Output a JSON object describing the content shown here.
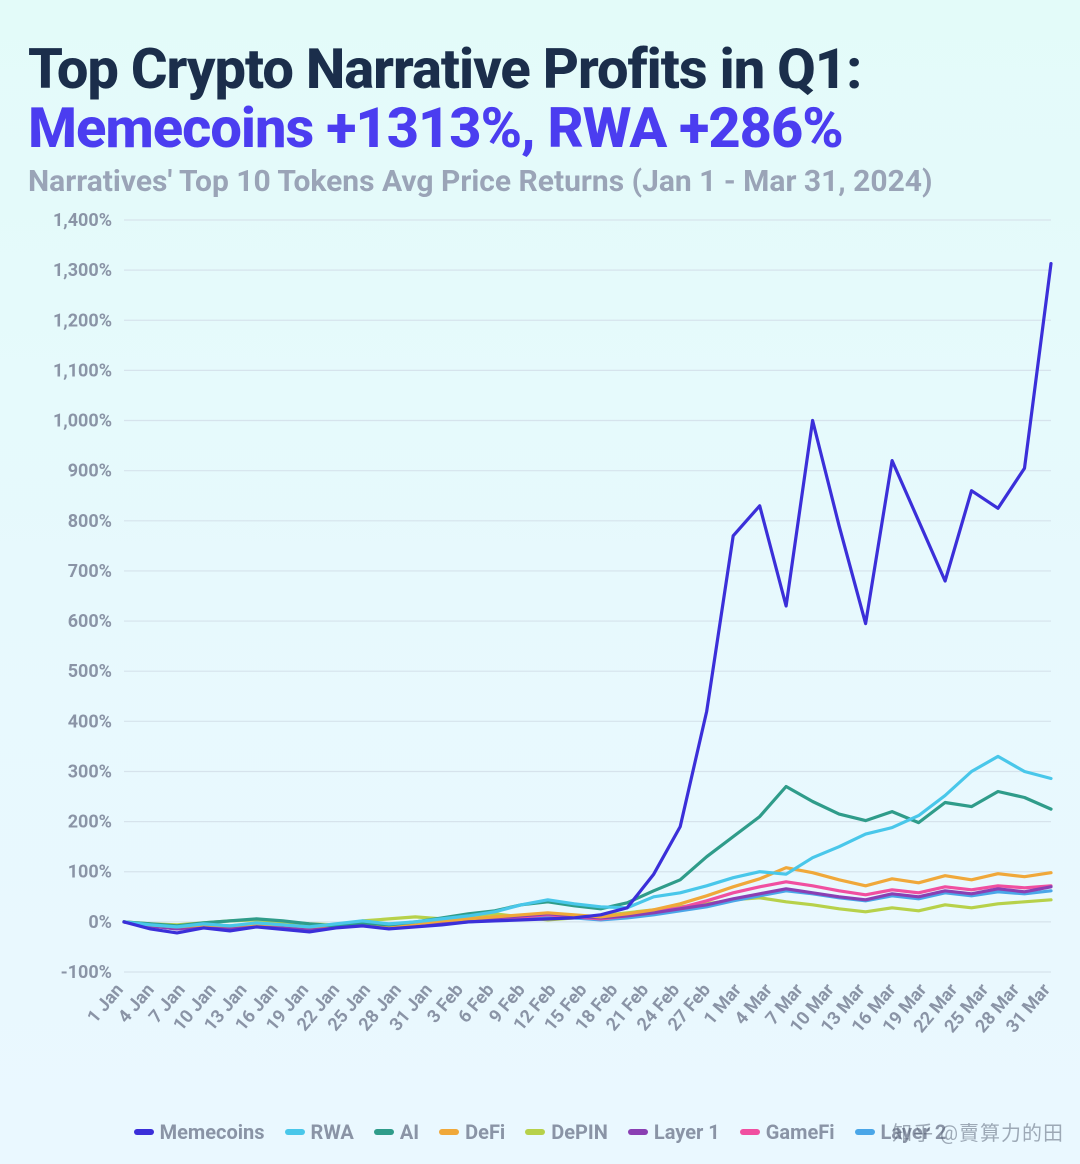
{
  "title": {
    "line1": "Top Crypto Narrative Profits in Q1:",
    "line2": "Memecoins +1313%, RWA +286%",
    "subtitle": "Narratives' Top 10 Tokens Avg Price Returns (Jan 1 - Mar 31, 2024)",
    "line1_color": "#1b2e4b",
    "line2_color": "#4b3df0",
    "subtitle_color": "#9aa4b7",
    "title_fontsize": 56,
    "subtitle_fontsize": 30
  },
  "chart": {
    "type": "line",
    "background_color": "#e7f9fd",
    "grid_color": "#d6e3ec",
    "tick_label_color": "#8a94a6",
    "tick_fontsize": 18,
    "line_width": 3.2,
    "ylim": [
      -100,
      1400
    ],
    "ytick_step": 100,
    "ytick_suffix": "%",
    "x_labels": [
      "1 Jan",
      "4 Jan",
      "7 Jan",
      "10 Jan",
      "13 Jan",
      "16 Jan",
      "19 Jan",
      "22 Jan",
      "25 Jan",
      "28 Jan",
      "31 Jan",
      "3 Feb",
      "6 Feb",
      "9 Feb",
      "12 Feb",
      "15 Feb",
      "18 Feb",
      "21 Feb",
      "24 Feb",
      "27 Feb",
      "1 Mar",
      "4 Mar",
      "7 Mar",
      "10 Mar",
      "13 Mar",
      "16 Mar",
      "19 Mar",
      "22 Mar",
      "25 Mar",
      "28 Mar",
      "31 Mar"
    ],
    "x_label_rotation": -50,
    "series_order": [
      "depin",
      "layer2",
      "gamefi",
      "layer1",
      "defi",
      "ai",
      "rwa",
      "memecoins"
    ],
    "legend_order": [
      "memecoins",
      "rwa",
      "ai",
      "defi",
      "depin",
      "layer1",
      "gamefi",
      "layer2"
    ],
    "series": {
      "memecoins": {
        "label": "Memecoins",
        "color": "#3b2fd9",
        "values": [
          0,
          -14,
          -22,
          -12,
          -18,
          -10,
          -15,
          -20,
          -12,
          -8,
          -14,
          -10,
          -6,
          0,
          2,
          4,
          6,
          8,
          14,
          28,
          95,
          190,
          420,
          770,
          830,
          630,
          1000,
          790,
          595,
          920,
          800,
          680,
          860,
          825,
          905,
          1313
        ]
      },
      "rwa": {
        "label": "RWA",
        "color": "#49c7ea",
        "values": [
          0,
          -6,
          -10,
          -4,
          -8,
          -2,
          -6,
          -10,
          -4,
          2,
          -4,
          0,
          6,
          12,
          20,
          34,
          44,
          36,
          30,
          28,
          50,
          58,
          72,
          88,
          100,
          95,
          128,
          150,
          175,
          188,
          212,
          252,
          300,
          330,
          300,
          286
        ]
      },
      "ai": {
        "label": "AI",
        "color": "#2f9c8a",
        "values": [
          0,
          -4,
          -8,
          -2,
          2,
          6,
          2,
          -4,
          -8,
          -2,
          -6,
          0,
          8,
          16,
          22,
          34,
          40,
          32,
          26,
          38,
          62,
          84,
          130,
          170,
          210,
          270,
          240,
          215,
          202,
          220,
          198,
          238,
          230,
          260,
          248,
          225
        ]
      },
      "defi": {
        "label": "DeFi",
        "color": "#f0a83a",
        "values": [
          0,
          -6,
          -10,
          -6,
          -8,
          -4,
          -6,
          -10,
          -6,
          -2,
          -8,
          -4,
          2,
          6,
          10,
          14,
          18,
          14,
          10,
          16,
          24,
          36,
          52,
          70,
          86,
          108,
          98,
          84,
          72,
          86,
          78,
          92,
          84,
          96,
          90,
          98
        ]
      },
      "depin": {
        "label": "DePIN",
        "color": "#b7d14a",
        "values": [
          0,
          -4,
          -6,
          -2,
          2,
          4,
          0,
          -4,
          -6,
          2,
          6,
          10,
          6,
          12,
          16,
          10,
          4,
          8,
          12,
          18,
          24,
          30,
          36,
          44,
          48,
          40,
          34,
          26,
          20,
          28,
          22,
          34,
          28,
          36,
          40,
          44
        ]
      },
      "layer1": {
        "label": "Layer 1",
        "color": "#8a3fb3",
        "values": [
          0,
          -8,
          -14,
          -8,
          -12,
          -6,
          -10,
          -14,
          -10,
          -4,
          -10,
          -6,
          -2,
          4,
          8,
          12,
          16,
          12,
          8,
          12,
          18,
          26,
          34,
          46,
          56,
          66,
          58,
          50,
          44,
          56,
          50,
          62,
          56,
          66,
          60,
          70
        ]
      },
      "gamefi": {
        "label": "GameFi",
        "color": "#f04fa0",
        "values": [
          0,
          -8,
          -14,
          -10,
          -14,
          -8,
          -12,
          -16,
          -10,
          -6,
          -12,
          -8,
          -4,
          2,
          6,
          10,
          14,
          10,
          6,
          12,
          20,
          28,
          42,
          58,
          70,
          80,
          72,
          62,
          54,
          64,
          58,
          70,
          64,
          72,
          68,
          72
        ]
      },
      "layer2": {
        "label": "Layer 2",
        "color": "#4aa6e8",
        "values": [
          0,
          -8,
          -14,
          -10,
          -14,
          -8,
          -12,
          -16,
          -10,
          -6,
          -12,
          -8,
          -4,
          0,
          4,
          8,
          12,
          8,
          4,
          8,
          14,
          22,
          30,
          42,
          52,
          62,
          56,
          48,
          42,
          52,
          46,
          58,
          52,
          60,
          56,
          62
        ]
      }
    }
  },
  "watermark": "知乎 @賣算力的田"
}
